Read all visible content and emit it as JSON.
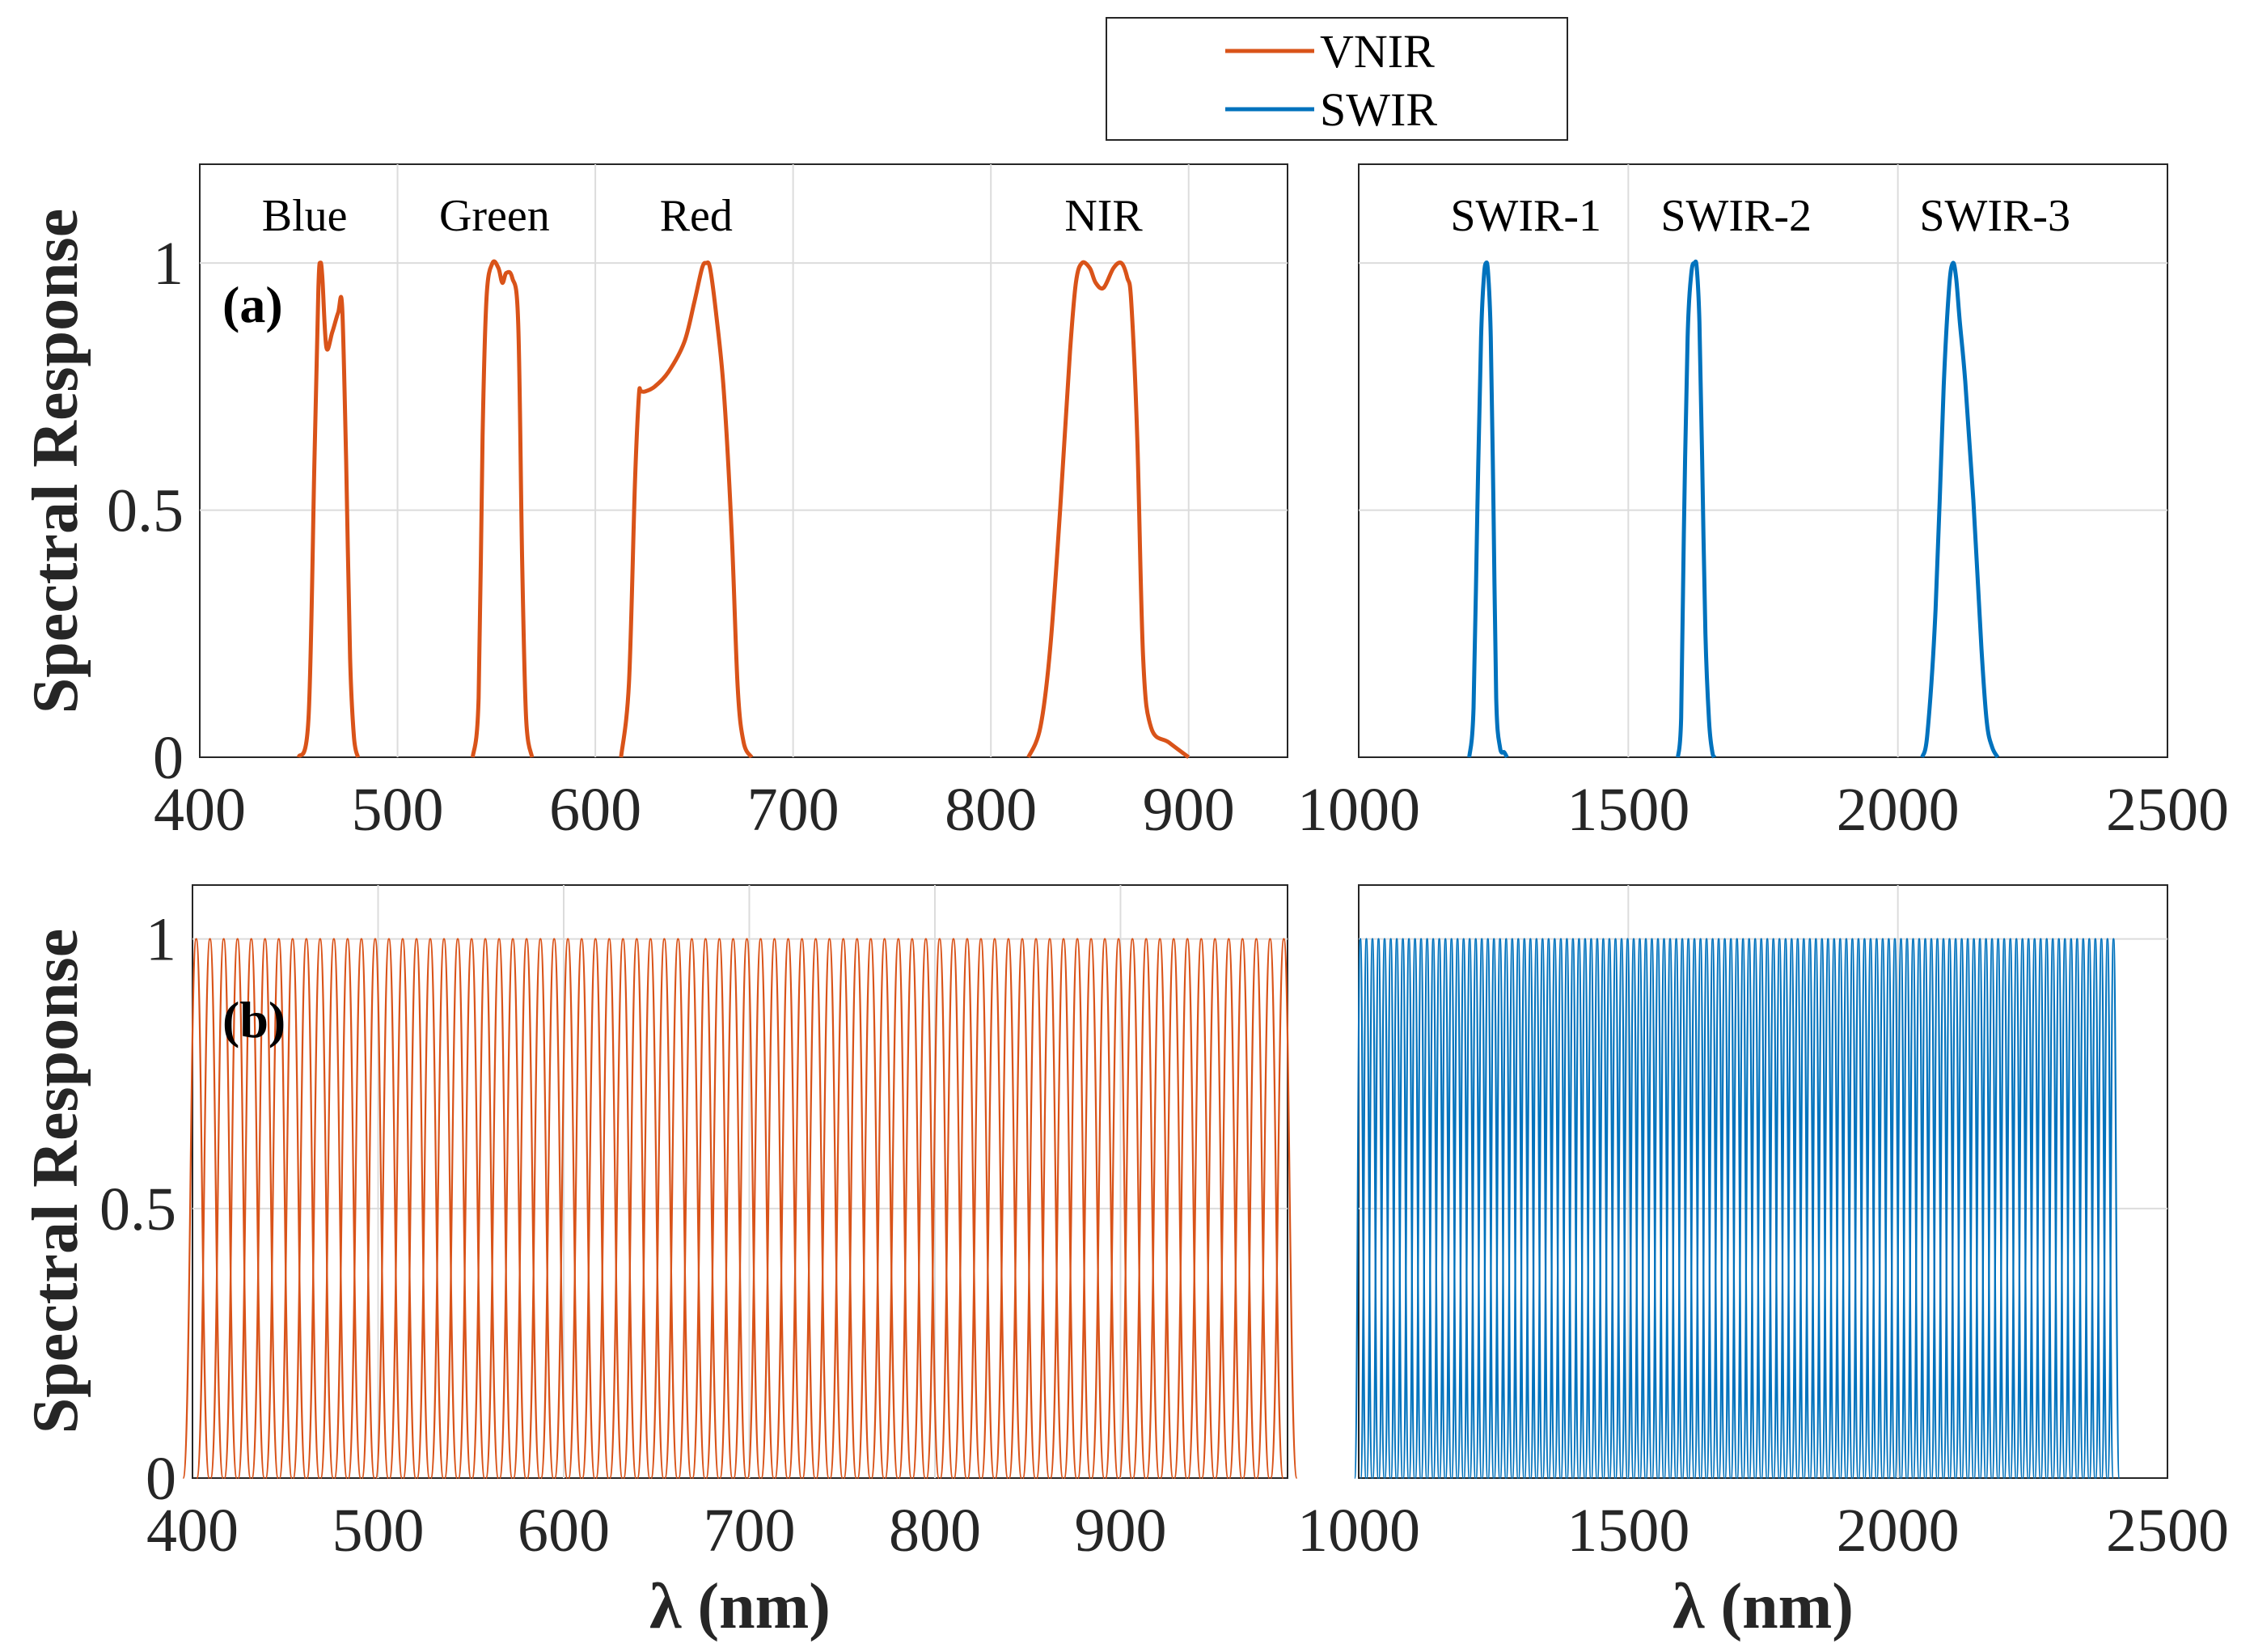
{
  "colors": {
    "vnir": "#D95319",
    "swir": "#0072BD",
    "axis": "#262626",
    "grid": "#DCDCDC"
  },
  "legend": {
    "placement": "top-center",
    "entries": [
      "VNIR",
      "SWIR"
    ]
  },
  "chart_data": [
    {
      "id": "a-vnir",
      "type": "line",
      "panel": "(a)",
      "xlim": [
        400,
        950
      ],
      "ylim": [
        0,
        1.2
      ],
      "xticks": [
        "400",
        "500",
        "600",
        "700",
        "800",
        "900"
      ],
      "yticks": [
        "0",
        "0.5",
        "1"
      ],
      "ylabel": "Spectral Response",
      "xlabel": "",
      "grid": true,
      "series_color": "vnir",
      "band_labels": [
        {
          "text": "Blue",
          "x": 453
        },
        {
          "text": "Green",
          "x": 549
        },
        {
          "text": "Red",
          "x": 651
        },
        {
          "text": "NIR",
          "x": 857
        }
      ],
      "series": [
        {
          "name": "Blue",
          "x": [
            450,
            455,
            458,
            460,
            461,
            462,
            464,
            467,
            470,
            472,
            474,
            476,
            478,
            480
          ],
          "y": [
            0,
            0.08,
            0.6,
            0.95,
            1.0,
            0.97,
            0.83,
            0.86,
            0.9,
            0.91,
            0.6,
            0.2,
            0.04,
            0
          ]
        },
        {
          "name": "Green",
          "x": [
            538,
            541,
            543,
            545,
            548,
            551,
            553,
            555,
            558,
            561,
            563,
            565,
            568
          ],
          "y": [
            0,
            0.12,
            0.65,
            0.93,
            1.0,
            0.99,
            0.96,
            0.98,
            0.97,
            0.88,
            0.4,
            0.08,
            0
          ]
        },
        {
          "name": "Red",
          "x": [
            613,
            617,
            620,
            622,
            623,
            625,
            630,
            637,
            645,
            650,
            654,
            656,
            658,
            661,
            665,
            669,
            672,
            675,
            679
          ],
          "y": [
            0,
            0.15,
            0.55,
            0.73,
            0.74,
            0.74,
            0.75,
            0.78,
            0.84,
            0.92,
            0.99,
            1.0,
            0.99,
            0.9,
            0.74,
            0.45,
            0.14,
            0.03,
            0
          ]
        },
        {
          "name": "NIR",
          "x": [
            819,
            825,
            830,
            835,
            840,
            843,
            846,
            850,
            853,
            857,
            862,
            866,
            869,
            871,
            874,
            877,
            881,
            890,
            900
          ],
          "y": [
            0,
            0.06,
            0.22,
            0.5,
            0.82,
            0.96,
            1.0,
            0.99,
            0.96,
            0.95,
            0.99,
            1.0,
            0.97,
            0.92,
            0.65,
            0.2,
            0.06,
            0.03,
            0
          ]
        }
      ]
    },
    {
      "id": "a-swir",
      "type": "line",
      "panel": "(a)",
      "xlim": [
        1000,
        2500
      ],
      "ylim": [
        0,
        1.2
      ],
      "xticks": [
        "1000",
        "1500",
        "2000",
        "2500"
      ],
      "yticks": [],
      "grid": true,
      "series_color": "swir",
      "band_labels": [
        {
          "text": "SWIR-1",
          "x": 1310
        },
        {
          "text": "SWIR-2",
          "x": 1700
        },
        {
          "text": "SWIR-3",
          "x": 2180
        }
      ],
      "series": [
        {
          "name": "SWIR-1",
          "x": [
            1205,
            1213,
            1220,
            1227,
            1232,
            1236,
            1240,
            1245,
            1250,
            1255,
            1262,
            1270,
            1275
          ],
          "y": [
            0,
            0.1,
            0.5,
            0.85,
            0.97,
            1.0,
            0.98,
            0.85,
            0.5,
            0.12,
            0.02,
            0.01,
            0
          ]
        },
        {
          "name": "SWIR-2",
          "x": [
            1592,
            1598,
            1603,
            1610,
            1617,
            1623,
            1627,
            1632,
            1637,
            1643,
            1650,
            1656,
            1660
          ],
          "y": [
            0,
            0.08,
            0.45,
            0.85,
            0.98,
            1.0,
            0.99,
            0.88,
            0.6,
            0.25,
            0.07,
            0.01,
            0
          ]
        },
        {
          "name": "SWIR-3",
          "x": [
            2045,
            2055,
            2070,
            2085,
            2095,
            2102,
            2108,
            2115,
            2125,
            2140,
            2155,
            2165,
            2175,
            2185
          ],
          "y": [
            0,
            0.05,
            0.3,
            0.75,
            0.95,
            1.0,
            0.97,
            0.88,
            0.76,
            0.52,
            0.22,
            0.07,
            0.02,
            0
          ]
        }
      ]
    },
    {
      "id": "b-vnir",
      "type": "line",
      "panel": "(b)",
      "xlim": [
        400,
        990
      ],
      "ylim": [
        0,
        1.1
      ],
      "xticks": [
        "400",
        "500",
        "600",
        "700",
        "800",
        "900"
      ],
      "yticks": [
        "0",
        "0.5",
        "1"
      ],
      "ylabel": "Spectral Response",
      "xlabel": "λ (nm)",
      "grid": true,
      "series_color": "vnir",
      "comb": {
        "start": 402,
        "end": 988,
        "count": 80,
        "min": 0,
        "max": 1
      }
    },
    {
      "id": "b-swir",
      "type": "line",
      "panel": "(b)",
      "xlim": [
        1000,
        2500
      ],
      "ylim": [
        0,
        1.1
      ],
      "xticks": [
        "1000",
        "1500",
        "2000",
        "2500"
      ],
      "yticks": [],
      "xlabel": "λ (nm)",
      "grid": true,
      "series_color": "swir",
      "comb": {
        "start": 1003,
        "end": 2400,
        "count": 125,
        "min": 0,
        "max": 1
      }
    }
  ]
}
